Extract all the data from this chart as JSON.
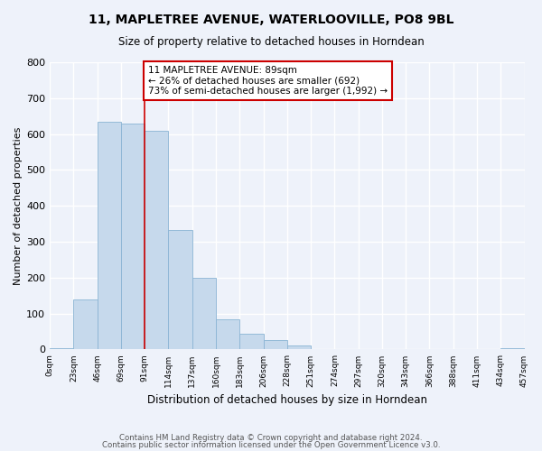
{
  "title": "11, MAPLETREE AVENUE, WATERLOOVILLE, PO8 9BL",
  "subtitle": "Size of property relative to detached houses in Horndean",
  "xlabel": "Distribution of detached houses by size in Horndean",
  "ylabel": "Number of detached properties",
  "bin_labels": [
    "0sqm",
    "23sqm",
    "46sqm",
    "69sqm",
    "91sqm",
    "114sqm",
    "137sqm",
    "160sqm",
    "183sqm",
    "206sqm",
    "228sqm",
    "251sqm",
    "274sqm",
    "297sqm",
    "320sqm",
    "343sqm",
    "366sqm",
    "388sqm",
    "411sqm",
    "434sqm",
    "457sqm"
  ],
  "bar_values": [
    4,
    140,
    635,
    630,
    608,
    333,
    200,
    84,
    45,
    27,
    12,
    0,
    0,
    0,
    0,
    0,
    0,
    0,
    0,
    4
  ],
  "bar_color": "#c6d9ec",
  "bar_edge_color": "#8ab4d4",
  "property_line_color": "#cc0000",
  "annotation_line1": "11 MAPLETREE AVENUE: 89sqm",
  "annotation_line2": "← 26% of detached houses are smaller (692)",
  "annotation_line3": "73% of semi-detached houses are larger (1,992) →",
  "annotation_box_color": "#ffffff",
  "annotation_box_edge": "#cc0000",
  "ylim": [
    0,
    800
  ],
  "yticks": [
    0,
    100,
    200,
    300,
    400,
    500,
    600,
    700,
    800
  ],
  "footer1": "Contains HM Land Registry data © Crown copyright and database right 2024.",
  "footer2": "Contains public sector information licensed under the Open Government Licence v3.0.",
  "background_color": "#eef2fa",
  "grid_color": "#ffffff",
  "property_line_bin_index": 4
}
